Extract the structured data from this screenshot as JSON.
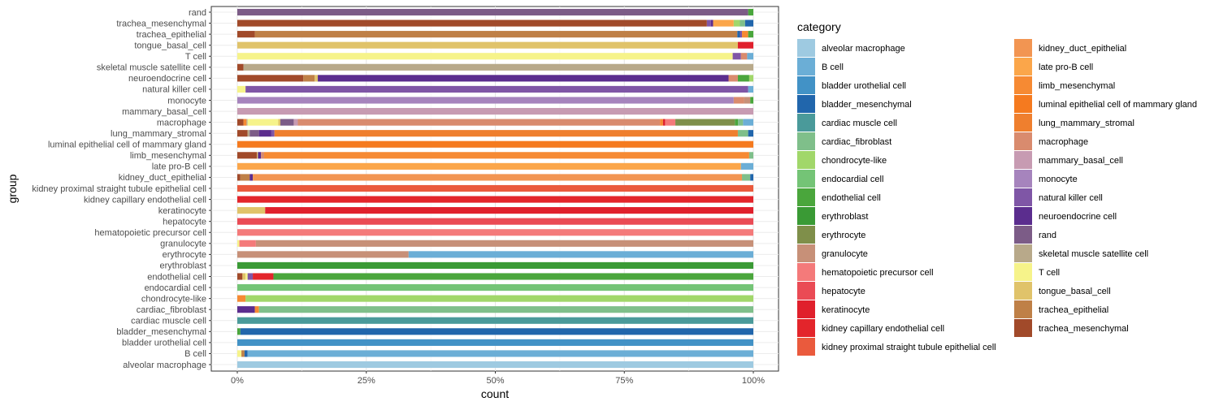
{
  "chart_data": {
    "type": "bar",
    "orientation": "horizontal",
    "stacked": "fill",
    "xlabel": "count",
    "ylabel": "group",
    "xlim": [
      0,
      1
    ],
    "xticks": [
      0,
      0.25,
      0.5,
      0.75,
      1
    ],
    "xtick_labels": [
      "0%",
      "25%",
      "50%",
      "75%",
      "100%"
    ],
    "legend_title": "category",
    "legend_position": "right",
    "categories": [
      {
        "name": "alveolar macrophage",
        "color": "#9ecae1"
      },
      {
        "name": "B cell",
        "color": "#6baed6"
      },
      {
        "name": "bladder urothelial cell",
        "color": "#4292c6"
      },
      {
        "name": "bladder_mesenchymal",
        "color": "#2166ac"
      },
      {
        "name": "cardiac muscle cell",
        "color": "#4a9a9a"
      },
      {
        "name": "cardiac_fibroblast",
        "color": "#7fbf8a"
      },
      {
        "name": "chondrocyte-like",
        "color": "#a1d76a"
      },
      {
        "name": "endocardial cell",
        "color": "#74c476"
      },
      {
        "name": "endothelial cell",
        "color": "#4aa63c"
      },
      {
        "name": "erythroblast",
        "color": "#3a9a35"
      },
      {
        "name": "erythrocyte",
        "color": "#7f8f4a"
      },
      {
        "name": "granulocyte",
        "color": "#c79078"
      },
      {
        "name": "hematopoietic precursor cell",
        "color": "#f47a7a"
      },
      {
        "name": "hepatocyte",
        "color": "#ea4b55"
      },
      {
        "name": "keratinocyte",
        "color": "#e0202c"
      },
      {
        "name": "kidney capillary endothelial cell",
        "color": "#e3252b"
      },
      {
        "name": "kidney proximal straight tubule epithelial cell",
        "color": "#ea5a3d"
      },
      {
        "name": "kidney_duct_epithelial",
        "color": "#f29552"
      },
      {
        "name": "late pro-B cell",
        "color": "#fba64a"
      },
      {
        "name": "limb_mesenchymal",
        "color": "#f68a33"
      },
      {
        "name": "luminal epithelial cell of mammary gland",
        "color": "#f57a1f"
      },
      {
        "name": "lung_mammary_stromal",
        "color": "#ef7f2e"
      },
      {
        "name": "macrophage",
        "color": "#d98b6e"
      },
      {
        "name": "mammary_basal_cell",
        "color": "#c79bb2"
      },
      {
        "name": "monocyte",
        "color": "#a684bd"
      },
      {
        "name": "natural killer cell",
        "color": "#7f56a6"
      },
      {
        "name": "neuroendocrine cell",
        "color": "#5b2d8e"
      },
      {
        "name": "rand",
        "color": "#7c5c87"
      },
      {
        "name": "skeletal muscle satellite cell",
        "color": "#b8a98a"
      },
      {
        "name": "T cell",
        "color": "#f6f38a"
      },
      {
        "name": "tongue_basal_cell",
        "color": "#e0c36a"
      },
      {
        "name": "trachea_epithelial",
        "color": "#bf8047"
      },
      {
        "name": "trachea_mesenchymal",
        "color": "#a14a2a"
      }
    ],
    "groups": [
      {
        "group": "rand",
        "segments": [
          [
            "rand",
            0.99
          ],
          [
            "endothelial cell",
            0.01
          ]
        ]
      },
      {
        "group": "trachea_mesenchymal",
        "segments": [
          [
            "trachea_mesenchymal",
            0.91
          ],
          [
            "natural killer cell",
            0.008
          ],
          [
            "neuroendocrine cell",
            0.004
          ],
          [
            "late pro-B cell",
            0.04
          ],
          [
            "chondrocyte-like",
            0.012
          ],
          [
            "cardiac_fibroblast",
            0.01
          ],
          [
            "bladder_mesenchymal",
            0.016
          ]
        ]
      },
      {
        "group": "trachea_epithelial",
        "segments": [
          [
            "trachea_mesenchymal",
            0.034
          ],
          [
            "trachea_epithelial",
            0.935
          ],
          [
            "bladder_mesenchymal",
            0.005
          ],
          [
            "natural killer cell",
            0.004
          ],
          [
            "limb_mesenchymal",
            0.012
          ],
          [
            "endothelial cell",
            0.01
          ]
        ]
      },
      {
        "group": "tongue_basal_cell",
        "segments": [
          [
            "tongue_basal_cell",
            0.97
          ],
          [
            "keratinocyte",
            0.03
          ]
        ]
      },
      {
        "group": "T cell",
        "segments": [
          [
            "T cell",
            0.96
          ],
          [
            "natural killer cell",
            0.016
          ],
          [
            "macrophage",
            0.012
          ],
          [
            "B cell",
            0.012
          ]
        ]
      },
      {
        "group": "skeletal muscle satellite cell",
        "segments": [
          [
            "trachea_mesenchymal",
            0.012
          ],
          [
            "skeletal muscle satellite cell",
            0.988
          ]
        ]
      },
      {
        "group": "neuroendocrine cell",
        "segments": [
          [
            "trachea_mesenchymal",
            0.128
          ],
          [
            "trachea_epithelial",
            0.022
          ],
          [
            "tongue_basal_cell",
            0.006
          ],
          [
            "neuroendocrine cell",
            0.796
          ],
          [
            "macrophage",
            0.018
          ],
          [
            "endothelial cell",
            0.022
          ],
          [
            "chondrocyte-like",
            0.008
          ]
        ]
      },
      {
        "group": "natural killer cell",
        "segments": [
          [
            "T cell",
            0.016
          ],
          [
            "natural killer cell",
            0.974
          ],
          [
            "B cell",
            0.01
          ]
        ]
      },
      {
        "group": "monocyte",
        "segments": [
          [
            "monocyte",
            0.962
          ],
          [
            "macrophage",
            0.02
          ],
          [
            "granulocyte",
            0.012
          ],
          [
            "endothelial cell",
            0.006
          ]
        ]
      },
      {
        "group": "mammary_basal_cell",
        "segments": [
          [
            "mammary_basal_cell",
            1.0
          ]
        ]
      },
      {
        "group": "macrophage",
        "segments": [
          [
            "trachea_mesenchymal",
            0.012
          ],
          [
            "limb_mesenchymal",
            0.006
          ],
          [
            "skeletal muscle satellite cell",
            0.002
          ],
          [
            "T cell",
            0.06
          ],
          [
            "tongue_basal_cell",
            0.004
          ],
          [
            "rand",
            0.026
          ],
          [
            "mammary_basal_cell",
            0.008
          ],
          [
            "macrophage",
            0.706
          ],
          [
            "limb_mesenchymal",
            0.006
          ],
          [
            "keratinocyte",
            0.004
          ],
          [
            "hematopoietic precursor cell",
            0.02
          ],
          [
            "erythrocyte",
            0.116
          ],
          [
            "endothelial cell",
            0.006
          ],
          [
            "cardiac_fibroblast",
            0.01
          ],
          [
            "B cell",
            0.02
          ]
        ]
      },
      {
        "group": "lung_mammary_stromal",
        "segments": [
          [
            "trachea_mesenchymal",
            0.02
          ],
          [
            "skeletal muscle satellite cell",
            0.004
          ],
          [
            "rand",
            0.018
          ],
          [
            "neuroendocrine cell",
            0.024
          ],
          [
            "natural killer cell",
            0.006
          ],
          [
            "lung_mammary_stromal",
            0.898
          ],
          [
            "cardiac_fibroblast",
            0.02
          ],
          [
            "bladder_mesenchymal",
            0.01
          ]
        ]
      },
      {
        "group": "luminal epithelial cell of mammary gland",
        "segments": [
          [
            "luminal epithelial cell of mammary gland",
            1.0
          ]
        ]
      },
      {
        "group": "limb_mesenchymal",
        "segments": [
          [
            "trachea_mesenchymal",
            0.038
          ],
          [
            "tongue_basal_cell",
            0.002
          ],
          [
            "neuroendocrine cell",
            0.006
          ],
          [
            "macrophage",
            0.006
          ],
          [
            "limb_mesenchymal",
            0.94
          ],
          [
            "cardiac_fibroblast",
            0.008
          ]
        ]
      },
      {
        "group": "late pro-B cell",
        "segments": [
          [
            "late pro-B cell",
            0.976
          ],
          [
            "B cell",
            0.024
          ]
        ]
      },
      {
        "group": "kidney_duct_epithelial",
        "segments": [
          [
            "trachea_mesenchymal",
            0.006
          ],
          [
            "trachea_epithelial",
            0.018
          ],
          [
            "neuroendocrine cell",
            0.006
          ],
          [
            "kidney_duct_epithelial",
            0.948
          ],
          [
            "cardiac_fibroblast",
            0.016
          ],
          [
            "bladder_mesenchymal",
            0.006
          ]
        ]
      },
      {
        "group": "kidney proximal straight tubule epithelial cell",
        "segments": [
          [
            "kidney proximal straight tubule epithelial cell",
            1.0
          ]
        ]
      },
      {
        "group": "kidney capillary endothelial cell",
        "segments": [
          [
            "kidney capillary endothelial cell",
            1.0
          ]
        ]
      },
      {
        "group": "keratinocyte",
        "segments": [
          [
            "tongue_basal_cell",
            0.054
          ],
          [
            "keratinocyte",
            0.946
          ]
        ]
      },
      {
        "group": "hepatocyte",
        "segments": [
          [
            "hepatocyte",
            1.0
          ]
        ]
      },
      {
        "group": "hematopoietic precursor cell",
        "segments": [
          [
            "hematopoietic precursor cell",
            1.0
          ]
        ]
      },
      {
        "group": "granulocyte",
        "segments": [
          [
            "T cell",
            0.004
          ],
          [
            "hematopoietic precursor cell",
            0.032
          ],
          [
            "granulocyte",
            0.964
          ]
        ]
      },
      {
        "group": "erythrocyte",
        "segments": [
          [
            "granulocyte",
            0.332
          ],
          [
            "B cell",
            0.668
          ]
        ]
      },
      {
        "group": "erythroblast",
        "segments": [
          [
            "erythroblast",
            1.0
          ]
        ]
      },
      {
        "group": "endothelial cell",
        "segments": [
          [
            "trachea_mesenchymal",
            0.01
          ],
          [
            "tongue_basal_cell",
            0.006
          ],
          [
            "T cell",
            0.004
          ],
          [
            "natural killer cell",
            0.01
          ],
          [
            "kidney capillary endothelial cell",
            0.04
          ],
          [
            "endothelial cell",
            0.93
          ]
        ]
      },
      {
        "group": "endocardial cell",
        "segments": [
          [
            "endocardial cell",
            1.0
          ]
        ]
      },
      {
        "group": "chondrocyte-like",
        "segments": [
          [
            "limb_mesenchymal",
            0.016
          ],
          [
            "chondrocyte-like",
            0.984
          ]
        ]
      },
      {
        "group": "cardiac_fibroblast",
        "segments": [
          [
            "neuroendocrine cell",
            0.034
          ],
          [
            "limb_mesenchymal",
            0.008
          ],
          [
            "cardiac_fibroblast",
            0.958
          ]
        ]
      },
      {
        "group": "cardiac muscle cell",
        "segments": [
          [
            "cardiac muscle cell",
            1.0
          ]
        ]
      },
      {
        "group": "bladder_mesenchymal",
        "segments": [
          [
            "endothelial cell",
            0.006
          ],
          [
            "bladder_mesenchymal",
            0.994
          ]
        ]
      },
      {
        "group": "bladder urothelial cell",
        "segments": [
          [
            "bladder urothelial cell",
            1.0
          ]
        ]
      },
      {
        "group": "B cell",
        "segments": [
          [
            "T cell",
            0.008
          ],
          [
            "trachea_epithelial",
            0.006
          ],
          [
            "bladder_mesenchymal",
            0.006
          ],
          [
            "B cell",
            0.98
          ]
        ]
      },
      {
        "group": "alveolar macrophage",
        "segments": [
          [
            "alveolar macrophage",
            1.0
          ]
        ]
      }
    ]
  }
}
